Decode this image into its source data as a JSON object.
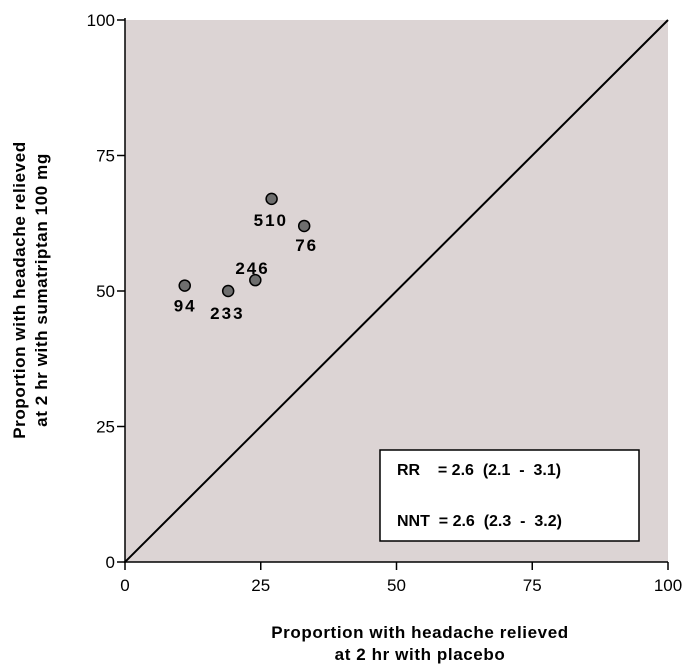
{
  "chart_data": {
    "type": "scatter",
    "xlabel": [
      "Proportion with headache relieved",
      "at 2 hr with placebo"
    ],
    "ylabel": [
      "Proportion with headache relieved",
      "at 2 hr with sumatriptan 100 mg"
    ],
    "xlim": [
      0,
      100
    ],
    "ylim": [
      0,
      100
    ],
    "xticks": [
      "0",
      "25",
      "50",
      "75",
      "100"
    ],
    "yticks": [
      "0",
      "25",
      "50",
      "75",
      "100"
    ],
    "points": [
      {
        "x": 11,
        "y": 51,
        "label": "94"
      },
      {
        "x": 19,
        "y": 50,
        "label": "233"
      },
      {
        "x": 24,
        "y": 52,
        "label": "246"
      },
      {
        "x": 27,
        "y": 67,
        "label": "510"
      },
      {
        "x": 33,
        "y": 62,
        "label": "76"
      }
    ],
    "reference_line": {
      "from": [
        0,
        0
      ],
      "to": [
        100,
        100
      ]
    },
    "stats": {
      "rr": "RR    = 2.6  (2.1  -  3.1)",
      "nnt": "NNT  = 2.6  (2.3  -  3.2)"
    },
    "colors": {
      "plot_background": "#dcd4d4",
      "marker_fill": "#6e6e6e",
      "line": "#000000"
    },
    "grid": false
  }
}
